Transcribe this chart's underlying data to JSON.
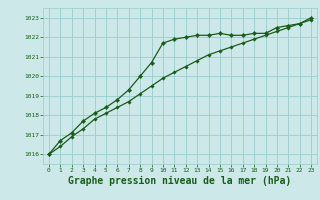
{
  "background_color": "#cce8e8",
  "grid_color": "#99cccc",
  "line_color": "#1a5c1a",
  "marker_color": "#1a5c1a",
  "title": "Graphe pression niveau de la mer (hPa)",
  "title_fontsize": 7.0,
  "xlim": [
    -0.5,
    23.5
  ],
  "ylim": [
    1015.5,
    1023.5
  ],
  "yticks": [
    1016,
    1017,
    1018,
    1019,
    1020,
    1021,
    1022,
    1023
  ],
  "xticks": [
    0,
    1,
    2,
    3,
    4,
    5,
    6,
    7,
    8,
    9,
    10,
    11,
    12,
    13,
    14,
    15,
    16,
    17,
    18,
    19,
    20,
    21,
    22,
    23
  ],
  "series1_x": [
    0,
    1,
    2,
    3,
    4,
    5,
    6,
    7,
    8,
    9,
    10,
    11,
    12,
    13,
    14,
    15,
    16,
    17,
    18,
    19,
    20,
    21,
    22,
    23
  ],
  "series1_y": [
    1016.0,
    1016.7,
    1017.1,
    1017.7,
    1018.1,
    1018.4,
    1018.8,
    1019.3,
    1020.0,
    1020.7,
    1021.7,
    1021.9,
    1022.0,
    1022.1,
    1022.1,
    1022.2,
    1022.1,
    1022.1,
    1022.2,
    1022.2,
    1022.5,
    1022.6,
    1022.7,
    1023.0
  ],
  "series2_x": [
    0,
    1,
    2,
    3,
    4,
    5,
    6,
    7,
    8,
    9,
    10,
    11,
    12,
    13,
    14,
    15,
    16,
    17,
    18,
    19,
    20,
    21,
    22,
    23
  ],
  "series2_y": [
    1016.0,
    1016.4,
    1016.9,
    1017.3,
    1017.8,
    1018.1,
    1018.4,
    1018.7,
    1019.1,
    1019.5,
    1019.9,
    1020.2,
    1020.5,
    1020.8,
    1021.1,
    1021.3,
    1021.5,
    1021.7,
    1021.9,
    1022.1,
    1022.3,
    1022.5,
    1022.7,
    1022.9
  ]
}
